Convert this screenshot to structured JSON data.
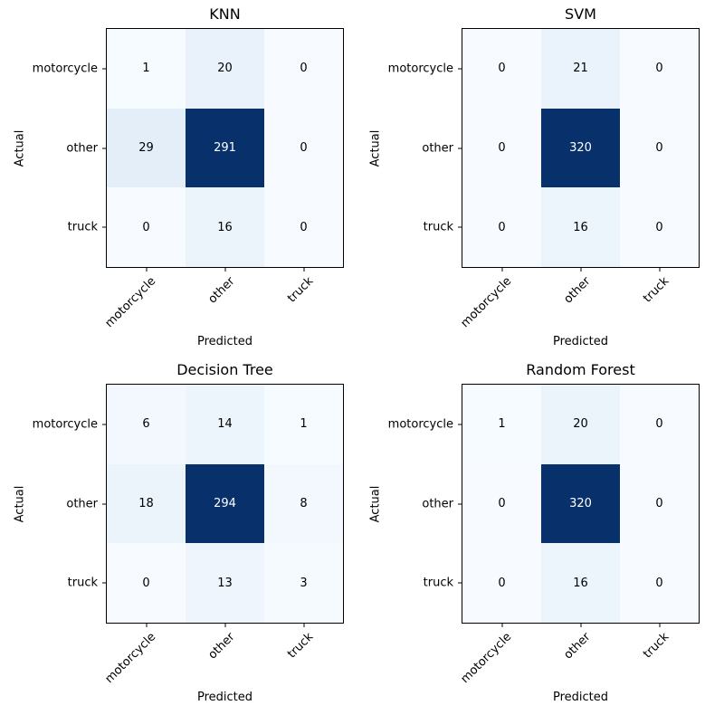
{
  "figure": {
    "background": "#ffffff",
    "border_color": "#000000",
    "text_color": "#000000",
    "cell_text_light": "#ffffff",
    "colormap": {
      "name": "Blues",
      "stops": [
        "#f7fbff",
        "#deebf7",
        "#c6dbef",
        "#9ecae1",
        "#6baed6",
        "#4292c6",
        "#2171b5",
        "#08519c",
        "#08306b"
      ]
    }
  },
  "chart_data": {
    "type": "heatmap",
    "subtype": "confusion-matrix-grid",
    "layout": "2x2 grid, no colorbar, no gridlines, square cells",
    "x_categories": [
      "motorcycle",
      "other",
      "truck"
    ],
    "y_categories": [
      "motorcycle",
      "other",
      "truck"
    ],
    "xlabel": "Predicted",
    "ylabel": "Actual",
    "x_tick_rotation_deg": 45,
    "charts": [
      {
        "title": "KNN",
        "matrix": [
          [
            1,
            20,
            0
          ],
          [
            29,
            291,
            0
          ],
          [
            0,
            16,
            0
          ]
        ],
        "vmax": 291
      },
      {
        "title": "SVM",
        "matrix": [
          [
            0,
            21,
            0
          ],
          [
            0,
            320,
            0
          ],
          [
            0,
            16,
            0
          ]
        ],
        "vmax": 320
      },
      {
        "title": "Decision Tree",
        "matrix": [
          [
            6,
            14,
            1
          ],
          [
            18,
            294,
            8
          ],
          [
            0,
            13,
            3
          ]
        ],
        "vmax": 294
      },
      {
        "title": "Random Forest",
        "matrix": [
          [
            1,
            20,
            0
          ],
          [
            0,
            320,
            0
          ],
          [
            0,
            16,
            0
          ]
        ],
        "vmax": 320
      }
    ]
  }
}
